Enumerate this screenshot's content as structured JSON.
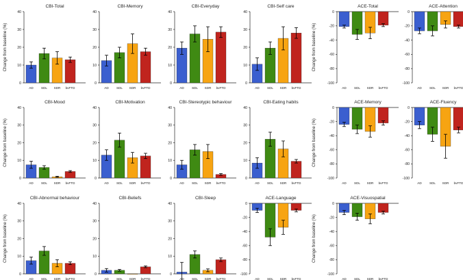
{
  "figure": {
    "categories": [
      "AD",
      "SDL",
      "SDR",
      "bvFTD"
    ],
    "colors": {
      "AD": "#3b5fcf",
      "SDL": "#3f8a13",
      "SDR": "#f7a412",
      "bvFTD": "#c0241e"
    },
    "ylabel_cbi": "Change from baseline (%)",
    "ylabel_ace": "Change from baseline (%)"
  },
  "chart_data": [
    {
      "type": "bar",
      "title": "CBI-Total",
      "categories": [
        "AD",
        "SDL",
        "SDR",
        "bvFTD"
      ],
      "values": [
        10,
        16.5,
        14,
        13
      ],
      "errors": [
        1.8,
        3,
        3.5,
        1.5
      ],
      "ylim": [
        0,
        40
      ],
      "yticks": [
        0,
        10,
        20,
        30,
        40
      ]
    },
    {
      "type": "bar",
      "title": "CBI-Memory",
      "categories": [
        "AD",
        "SDL",
        "SDR",
        "bvFTD"
      ],
      "values": [
        12.5,
        17,
        22,
        17.5
      ],
      "errors": [
        3,
        3,
        5.5,
        2
      ],
      "ylim": [
        0,
        40
      ],
      "yticks": [
        0,
        10,
        20,
        30,
        40
      ]
    },
    {
      "type": "bar",
      "title": "CBI-Everyday",
      "categories": [
        "AD",
        "SDL",
        "SDR",
        "bvFTD"
      ],
      "values": [
        19.5,
        27.5,
        24.5,
        28.5
      ],
      "errors": [
        3.5,
        4.5,
        7,
        3
      ],
      "ylim": [
        0,
        40
      ],
      "yticks": [
        0,
        10,
        20,
        30,
        40
      ]
    },
    {
      "type": "bar",
      "title": "CBI-Self care",
      "categories": [
        "AD",
        "SDL",
        "SDR",
        "bvFTD"
      ],
      "values": [
        10.5,
        19.5,
        25,
        28
      ],
      "errors": [
        3.5,
        3.5,
        6.5,
        3
      ],
      "ylim": [
        0,
        40
      ],
      "yticks": [
        0,
        10,
        20,
        30,
        40
      ]
    },
    {
      "type": "bar",
      "title": "ACE-Total",
      "categories": [
        "AD",
        "SDL",
        "SDR",
        "bvFTD"
      ],
      "values": [
        -21,
        -32,
        -30,
        -19
      ],
      "errors": [
        2,
        7,
        8,
        2
      ],
      "ylim": [
        -100,
        0
      ],
      "yticks": [
        0,
        -20,
        -40,
        -60,
        -80,
        -100
      ]
    },
    {
      "type": "bar",
      "title": "ACE-Attention",
      "categories": [
        "AD",
        "SDL",
        "SDR",
        "bvFTD"
      ],
      "values": [
        -27,
        -27,
        -18,
        -21
      ],
      "errors": [
        4,
        7,
        5,
        2
      ],
      "ylim": [
        -100,
        0
      ],
      "yticks": [
        0,
        -20,
        -40,
        -60,
        -80,
        -100
      ]
    },
    {
      "type": "bar",
      "title": "CBI-Mood",
      "categories": [
        "AD",
        "SDL",
        "SDR",
        "bvFTD"
      ],
      "values": [
        7.5,
        6,
        0.7,
        3.7
      ],
      "errors": [
        2,
        1,
        0.3,
        0.5
      ],
      "ylim": [
        0,
        40
      ],
      "yticks": [
        0,
        10,
        20,
        30,
        40
      ]
    },
    {
      "type": "bar",
      "title": "CBI-Motivation",
      "categories": [
        "AD",
        "SDL",
        "SDR",
        "bvFTD"
      ],
      "values": [
        13,
        21.5,
        11.5,
        12.5
      ],
      "errors": [
        3,
        4,
        3,
        1.5
      ],
      "ylim": [
        0,
        40
      ],
      "yticks": [
        0,
        10,
        20,
        30,
        40
      ]
    },
    {
      "type": "bar",
      "title": "CBI-Stereotypic behaviour",
      "categories": [
        "AD",
        "SDL",
        "SDR",
        "bvFTD"
      ],
      "values": [
        7.5,
        16,
        15,
        2
      ],
      "errors": [
        2.5,
        3,
        4,
        0.5
      ],
      "ylim": [
        0,
        40
      ],
      "yticks": [
        0,
        10,
        20,
        30,
        40
      ]
    },
    {
      "type": "bar",
      "title": "CBI-Eating habits",
      "categories": [
        "AD",
        "SDL",
        "SDR",
        "bvFTD"
      ],
      "values": [
        8.5,
        22,
        16.5,
        9.5
      ],
      "errors": [
        3,
        4,
        4.5,
        1
      ],
      "ylim": [
        0,
        40
      ],
      "yticks": [
        0,
        10,
        20,
        30,
        40
      ]
    },
    {
      "type": "bar",
      "title": "ACE-Memory",
      "categories": [
        "AD",
        "SDL",
        "SDR",
        "bvFTD"
      ],
      "values": [
        -24,
        -31,
        -34,
        -22
      ],
      "errors": [
        3,
        6,
        8,
        3
      ],
      "ylim": [
        -100,
        0
      ],
      "yticks": [
        0,
        -20,
        -40,
        -60,
        -80,
        -100
      ]
    },
    {
      "type": "bar",
      "title": "ACE-Fluency",
      "categories": [
        "AD",
        "SDL",
        "SDR",
        "bvFTD"
      ],
      "values": [
        -25,
        -38,
        -55,
        -32
      ],
      "errors": [
        5,
        10,
        17,
        4
      ],
      "ylim": [
        -100,
        0
      ],
      "yticks": [
        0,
        -20,
        -40,
        -60,
        -80,
        -100
      ]
    },
    {
      "type": "bar",
      "title": "CBI-Abnormal behaviour",
      "categories": [
        "AD",
        "SDL",
        "SDR",
        "bvFTD"
      ],
      "values": [
        7.5,
        13,
        6,
        6
      ],
      "errors": [
        2,
        2.5,
        2,
        0.8
      ],
      "ylim": [
        0,
        40
      ],
      "yticks": [
        0,
        10,
        20,
        30,
        40
      ]
    },
    {
      "type": "bar",
      "title": "CBI-Beliefs",
      "categories": [
        "AD",
        "SDL",
        "SDR",
        "bvFTD"
      ],
      "values": [
        2,
        2,
        0,
        4
      ],
      "errors": [
        1,
        0.5,
        0,
        0.5
      ],
      "ylim": [
        0,
        40
      ],
      "yticks": [
        0,
        10,
        20,
        30,
        40
      ]
    },
    {
      "type": "bar",
      "title": "CBI-Sleep",
      "categories": [
        "AD",
        "SDL",
        "SDR",
        "bvFTD"
      ],
      "values": [
        1,
        11,
        2,
        8
      ],
      "errors": [
        5.5,
        2,
        0.8,
        1
      ],
      "ylim": [
        0,
        40
      ],
      "yticks": [
        0,
        10,
        20,
        30,
        40
      ]
    },
    {
      "type": "bar",
      "title": "ACE-Language",
      "categories": [
        "AD",
        "SDL",
        "SDR",
        "bvFTD"
      ],
      "values": [
        -10,
        -48,
        -34,
        -10
      ],
      "errors": [
        3,
        12,
        10,
        2
      ],
      "ylim": [
        -100,
        0
      ],
      "yticks": [
        0,
        -20,
        -40,
        -60,
        -80,
        -100
      ]
    },
    {
      "type": "bar",
      "title": "ACE-Visuospatial",
      "categories": [
        "AD",
        "SDL",
        "SDR",
        "bvFTD"
      ],
      "values": [
        -13,
        -19,
        -22,
        -13
      ],
      "errors": [
        3,
        5,
        7,
        2
      ],
      "ylim": [
        -100,
        0
      ],
      "yticks": [
        0,
        -20,
        -40,
        -60,
        -80,
        -100
      ]
    }
  ]
}
